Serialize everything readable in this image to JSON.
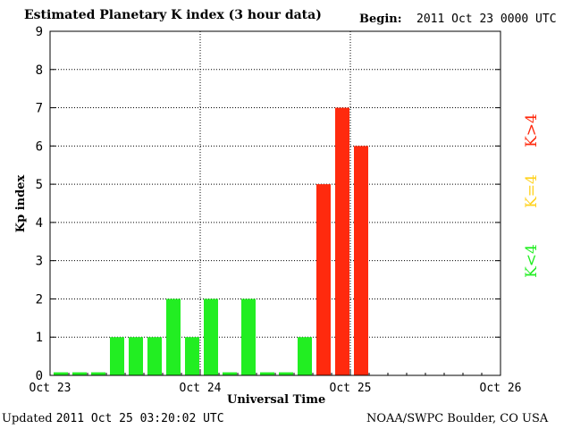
{
  "header": {
    "title": "Estimated Planetary K index (3 hour data)",
    "begin_label": "Begin:",
    "begin_value": "2011 Oct 23 0000 UTC"
  },
  "footer": {
    "updated_prefix": "Updated",
    "updated_value": "2011 Oct 25 03:20:02 UTC",
    "source": "NOAA/SWPC Boulder, CO USA"
  },
  "legend": {
    "low": "K<4",
    "mid": "K=4",
    "high": "K>4"
  },
  "colors": {
    "low": "#22ee22",
    "mid": "#ffd21e",
    "high": "#ff2a0e",
    "grid": "#000000"
  },
  "chart_data": {
    "type": "bar",
    "title": "Estimated Planetary K index (3 hour data)",
    "xlabel": "Universal Time",
    "ylabel": "Kp index",
    "ylim": [
      0,
      9
    ],
    "yticks": [
      0,
      1,
      2,
      3,
      4,
      5,
      6,
      7,
      8,
      9
    ],
    "xticks": [
      "Oct 23",
      "Oct 24",
      "Oct 25",
      "Oct 26"
    ],
    "bars_per_day": 8,
    "total_slots": 24,
    "values": [
      0,
      0,
      0,
      1,
      1,
      1,
      2,
      1,
      2,
      0,
      2,
      0,
      0,
      1,
      5,
      7,
      6
    ],
    "grid": true,
    "legend_position": "right"
  }
}
